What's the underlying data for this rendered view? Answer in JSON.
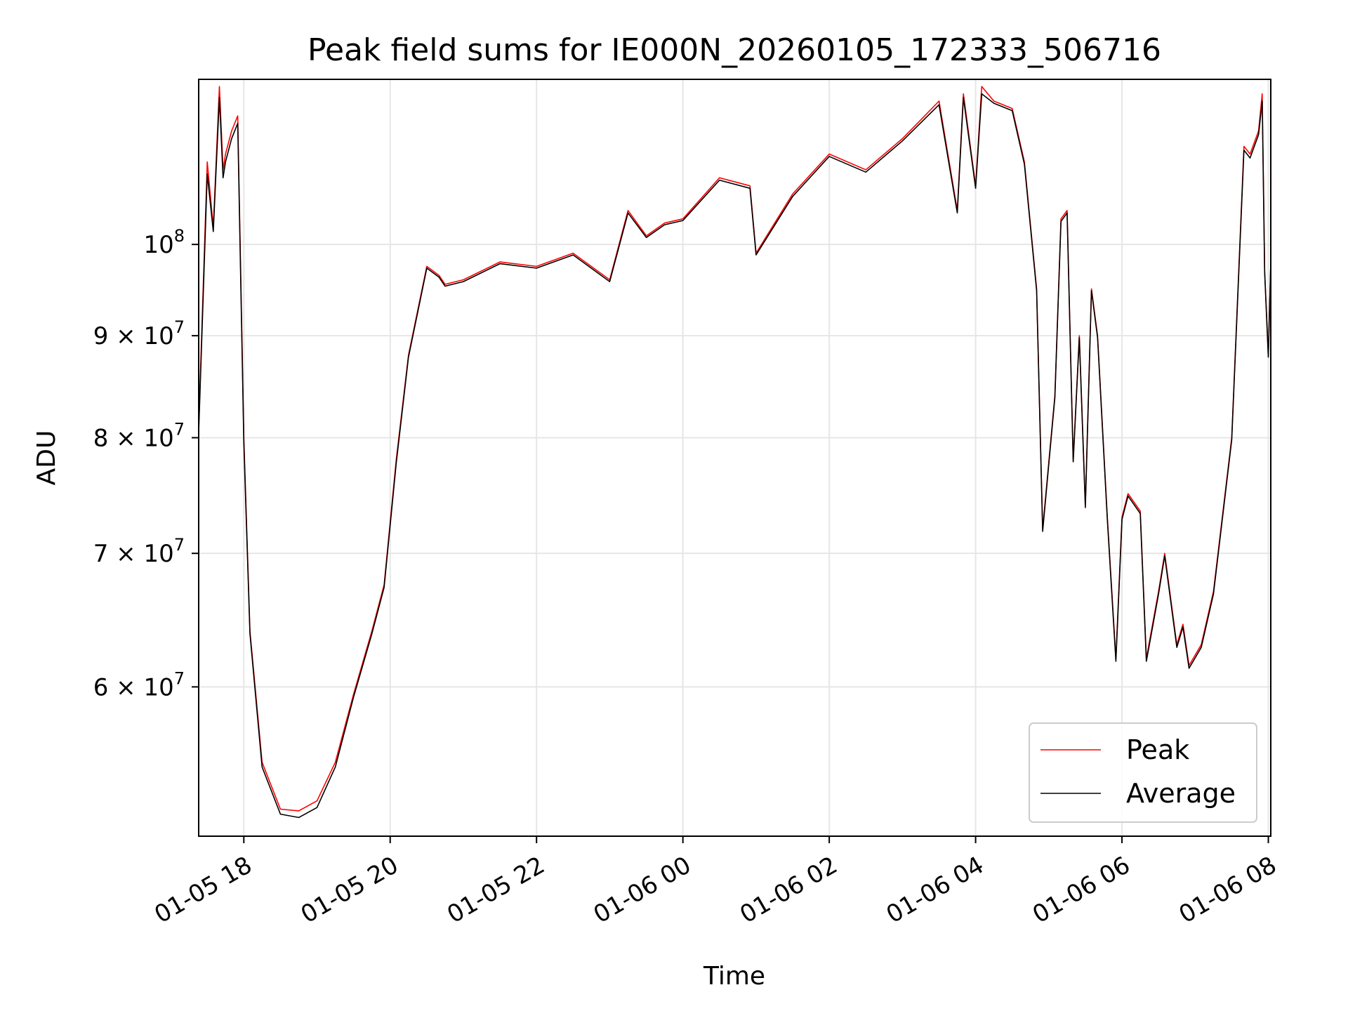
{
  "chart_data": {
    "type": "line",
    "title": "Peak field sums for IE000N_20260105_172333_506716",
    "xlabel": "Time",
    "ylabel": "ADU",
    "y_scale": "log",
    "ylim": [
      50500000,
      121000000
    ],
    "xlim": [
      "2026-01-05 17:23",
      "2026-01-06 08:02"
    ],
    "x_ticks": [
      {
        "t": "2026-01-05 18:00",
        "label": "01-05 18"
      },
      {
        "t": "2026-01-05 20:00",
        "label": "01-05 20"
      },
      {
        "t": "2026-01-05 22:00",
        "label": "01-05 22"
      },
      {
        "t": "2026-01-06 00:00",
        "label": "01-06 00"
      },
      {
        "t": "2026-01-06 02:00",
        "label": "01-06 02"
      },
      {
        "t": "2026-01-06 04:00",
        "label": "01-06 04"
      },
      {
        "t": "2026-01-06 06:00",
        "label": "01-06 06"
      },
      {
        "t": "2026-01-06 08:00",
        "label": "01-06 08"
      }
    ],
    "y_ticks": [
      {
        "value": 60000000,
        "label_base": "6 × 10",
        "label_exp": "7"
      },
      {
        "value": 70000000,
        "label_base": "7 × 10",
        "label_exp": "7"
      },
      {
        "value": 80000000,
        "label_base": "8 × 10",
        "label_exp": "7"
      },
      {
        "value": 90000000,
        "label_base": "9 × 10",
        "label_exp": "7"
      },
      {
        "value": 100000000,
        "label_base": "10",
        "label_exp": "8"
      }
    ],
    "grid": true,
    "legend_position": "lower-right",
    "series": [
      {
        "name": "Peak",
        "color": "#ff0000",
        "x": [
          "2026-01-05 17:23",
          "2026-01-05 17:30",
          "2026-01-05 17:35",
          "2026-01-05 17:40",
          "2026-01-05 17:43",
          "2026-01-05 17:45",
          "2026-01-05 17:50",
          "2026-01-05 17:55",
          "2026-01-05 18:00",
          "2026-01-05 18:05",
          "2026-01-05 18:15",
          "2026-01-05 18:30",
          "2026-01-05 18:45",
          "2026-01-05 19:00",
          "2026-01-05 19:15",
          "2026-01-05 19:30",
          "2026-01-05 19:45",
          "2026-01-05 19:55",
          "2026-01-05 20:05",
          "2026-01-05 20:15",
          "2026-01-05 20:30",
          "2026-01-05 20:40",
          "2026-01-05 20:45",
          "2026-01-05 21:00",
          "2026-01-05 21:30",
          "2026-01-05 22:00",
          "2026-01-05 22:30",
          "2026-01-05 23:00",
          "2026-01-05 23:15",
          "2026-01-05 23:30",
          "2026-01-05 23:45",
          "2026-01-06 00:00",
          "2026-01-06 00:30",
          "2026-01-06 00:55",
          "2026-01-06 01:00",
          "2026-01-06 01:30",
          "2026-01-06 02:00",
          "2026-01-06 02:30",
          "2026-01-06 03:00",
          "2026-01-06 03:30",
          "2026-01-06 03:45",
          "2026-01-06 03:50",
          "2026-01-06 04:00",
          "2026-01-06 04:05",
          "2026-01-06 04:15",
          "2026-01-06 04:30",
          "2026-01-06 04:40",
          "2026-01-06 04:50",
          "2026-01-06 04:55",
          "2026-01-06 05:05",
          "2026-01-06 05:10",
          "2026-01-06 05:15",
          "2026-01-06 05:20",
          "2026-01-06 05:25",
          "2026-01-06 05:30",
          "2026-01-06 05:35",
          "2026-01-06 05:40",
          "2026-01-06 05:48",
          "2026-01-06 05:55",
          "2026-01-06 06:00",
          "2026-01-06 06:05",
          "2026-01-06 06:15",
          "2026-01-06 06:20",
          "2026-01-06 06:30",
          "2026-01-06 06:35",
          "2026-01-06 06:45",
          "2026-01-06 06:50",
          "2026-01-06 06:55",
          "2026-01-06 07:05",
          "2026-01-06 07:15",
          "2026-01-06 07:30",
          "2026-01-06 07:40",
          "2026-01-06 07:45",
          "2026-01-06 07:52",
          "2026-01-06 07:55",
          "2026-01-06 07:57",
          "2026-01-06 08:00",
          "2026-01-06 08:02"
        ],
        "y": [
          81000000,
          110000000,
          102000000,
          120000000,
          109000000,
          111000000,
          114000000,
          116000000,
          80000000,
          64000000,
          55000000,
          52100000,
          52000000,
          52600000,
          55000000,
          59500000,
          64000000,
          67500000,
          78000000,
          88000000,
          97500000,
          96500000,
          95500000,
          96000000,
          98000000,
          97500000,
          99000000,
          96000000,
          104000000,
          101000000,
          102500000,
          103000000,
          108000000,
          107000000,
          99000000,
          106000000,
          111000000,
          109000000,
          113000000,
          118000000,
          104000000,
          119000000,
          107000000,
          120000000,
          118000000,
          117000000,
          110000000,
          95000000,
          72000000,
          84000000,
          103000000,
          104000000,
          78000000,
          90000000,
          74000000,
          95000000,
          90000000,
          73000000,
          62000000,
          73000000,
          75000000,
          73500000,
          62000000,
          67000000,
          70000000,
          63000000,
          64500000,
          61500000,
          63000000,
          67000000,
          80000000,
          112000000,
          111000000,
          114000000,
          119000000,
          97000000,
          88000000,
          98000000
        ]
      },
      {
        "name": "Average",
        "color": "#000000",
        "x": [
          "2026-01-05 17:23",
          "2026-01-05 17:30",
          "2026-01-05 17:35",
          "2026-01-05 17:40",
          "2026-01-05 17:43",
          "2026-01-05 17:45",
          "2026-01-05 17:50",
          "2026-01-05 17:55",
          "2026-01-05 18:00",
          "2026-01-05 18:05",
          "2026-01-05 18:15",
          "2026-01-05 18:30",
          "2026-01-05 18:45",
          "2026-01-05 19:00",
          "2026-01-05 19:15",
          "2026-01-05 19:30",
          "2026-01-05 19:45",
          "2026-01-05 19:55",
          "2026-01-05 20:05",
          "2026-01-05 20:15",
          "2026-01-05 20:30",
          "2026-01-05 20:40",
          "2026-01-05 20:45",
          "2026-01-05 21:00",
          "2026-01-05 21:30",
          "2026-01-05 22:00",
          "2026-01-05 22:30",
          "2026-01-05 23:00",
          "2026-01-05 23:15",
          "2026-01-05 23:30",
          "2026-01-05 23:45",
          "2026-01-06 00:00",
          "2026-01-06 00:30",
          "2026-01-06 00:55",
          "2026-01-06 01:00",
          "2026-01-06 01:30",
          "2026-01-06 02:00",
          "2026-01-06 02:30",
          "2026-01-06 03:00",
          "2026-01-06 03:30",
          "2026-01-06 03:45",
          "2026-01-06 03:50",
          "2026-01-06 04:00",
          "2026-01-06 04:05",
          "2026-01-06 04:15",
          "2026-01-06 04:30",
          "2026-01-06 04:40",
          "2026-01-06 04:50",
          "2026-01-06 04:55",
          "2026-01-06 05:05",
          "2026-01-06 05:10",
          "2026-01-06 05:15",
          "2026-01-06 05:20",
          "2026-01-06 05:25",
          "2026-01-06 05:30",
          "2026-01-06 05:35",
          "2026-01-06 05:40",
          "2026-01-06 05:48",
          "2026-01-06 05:55",
          "2026-01-06 06:00",
          "2026-01-06 06:05",
          "2026-01-06 06:15",
          "2026-01-06 06:20",
          "2026-01-06 06:30",
          "2026-01-06 06:35",
          "2026-01-06 06:45",
          "2026-01-06 06:50",
          "2026-01-06 06:55",
          "2026-01-06 07:05",
          "2026-01-06 07:15",
          "2026-01-06 07:30",
          "2026-01-06 07:40",
          "2026-01-06 07:45",
          "2026-01-06 07:52",
          "2026-01-06 07:55",
          "2026-01-06 07:57",
          "2026-01-06 08:00",
          "2026-01-06 08:02"
        ],
        "y": [
          80500000,
          108500000,
          101500000,
          118500000,
          108000000,
          110000000,
          113000000,
          115000000,
          79500000,
          63800000,
          54700000,
          51800000,
          51600000,
          52200000,
          54700000,
          59300000,
          63800000,
          67300000,
          77700000,
          87800000,
          97300000,
          96300000,
          95300000,
          95800000,
          97800000,
          97300000,
          98800000,
          95800000,
          103700000,
          100800000,
          102300000,
          102800000,
          107700000,
          106700000,
          98800000,
          105700000,
          110700000,
          108700000,
          112700000,
          117500000,
          103700000,
          118500000,
          106700000,
          119000000,
          117700000,
          116700000,
          109700000,
          94800000,
          71800000,
          83800000,
          102700000,
          103700000,
          77800000,
          89800000,
          73800000,
          94800000,
          89800000,
          72800000,
          61800000,
          72800000,
          74800000,
          73300000,
          61800000,
          66800000,
          69800000,
          62800000,
          64300000,
          61300000,
          62800000,
          66800000,
          79800000,
          111500000,
          110500000,
          113500000,
          118000000,
          96800000,
          87800000,
          97800000
        ]
      }
    ]
  }
}
